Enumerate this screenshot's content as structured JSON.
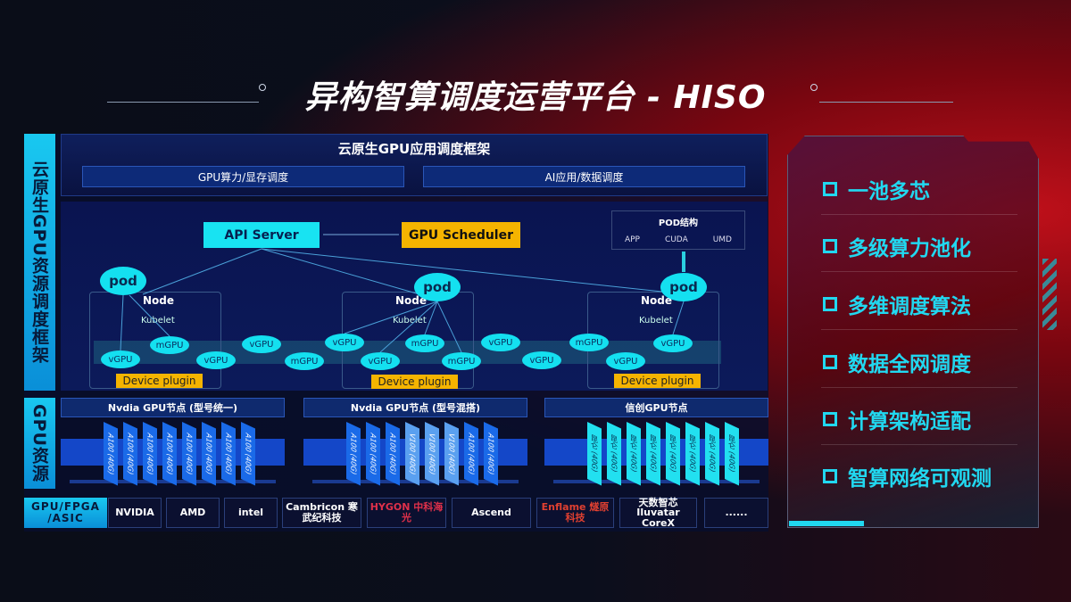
{
  "title": "异构智算调度运营平台 - HISO",
  "left_labels": {
    "framework": "云原生GPU资源调度框架",
    "resources": "GPU资源",
    "chips": "GPU/FPGA /ASIC"
  },
  "framework": {
    "title": "云原生GPU应用调度框架",
    "sub": [
      "GPU算力/显存调度",
      "AI应用/数据调度"
    ]
  },
  "diagram": {
    "api_server": "API Server",
    "gpu_scheduler": "GPU Scheduler",
    "pod_structure": {
      "title": "POD结构",
      "items": [
        "APP",
        "CUDA",
        "UMD"
      ]
    },
    "pod": "pod",
    "node": "Node",
    "kubelet": "Kubelet",
    "device_plugin": "Device plugin",
    "units": [
      "vGPU",
      "mGPU",
      "vGPU",
      "vGPU",
      "mGPU",
      "vGPU",
      "vGPU",
      "mGPU",
      "mGPU",
      "vGPU",
      "vGPU",
      "mGPU",
      "vGPU",
      "vGPU"
    ]
  },
  "gpu_groups": [
    {
      "title": "Nvdia GPU节点 (型号统一)",
      "chips": [
        "A100 (40G)",
        "A100 (40G)",
        "A100 (40G)",
        "A100 (40G)",
        "A100 (40G)",
        "A100 (40G)",
        "A100 (40G)",
        "A100 (40G)"
      ]
    },
    {
      "title": "Nvdia GPU节点 (型号混搭)",
      "chips": [
        "A100 (40G)",
        "A100 (40G)",
        "A100 (40G)",
        "V100 (40G)",
        "V100 (40G)",
        "V100 (40G)",
        "A100 (40G)",
        "A100 (40G)"
      ]
    },
    {
      "title": "信创GPU节点",
      "chips": [
        "昆仑 (40G)",
        "昆仑 (40G)",
        "昆仑 (40G)",
        "昆仑 (40G)",
        "昆仑 (40G)",
        "昆仑 (40G)",
        "昆仑 (40G)",
        "昆仑 (40G)"
      ]
    }
  ],
  "vendors": [
    "NVIDIA",
    "AMD",
    "intel",
    "Cambricon 寒武纪科技",
    "HYGON 中科海光",
    "Ascend",
    "Enflame 燧原科技",
    "天数智芯 Iluvatar CoreX",
    "......"
  ],
  "features": [
    "一池多芯",
    "多级算力池化",
    "多维调度算法",
    "数据全网调度",
    "计算架构适配",
    "智算网络可观测"
  ],
  "colors": {
    "cyan": "#14e0f0",
    "orange": "#f5b400",
    "blue": "#1447c8",
    "feature": "#21d8f0"
  }
}
